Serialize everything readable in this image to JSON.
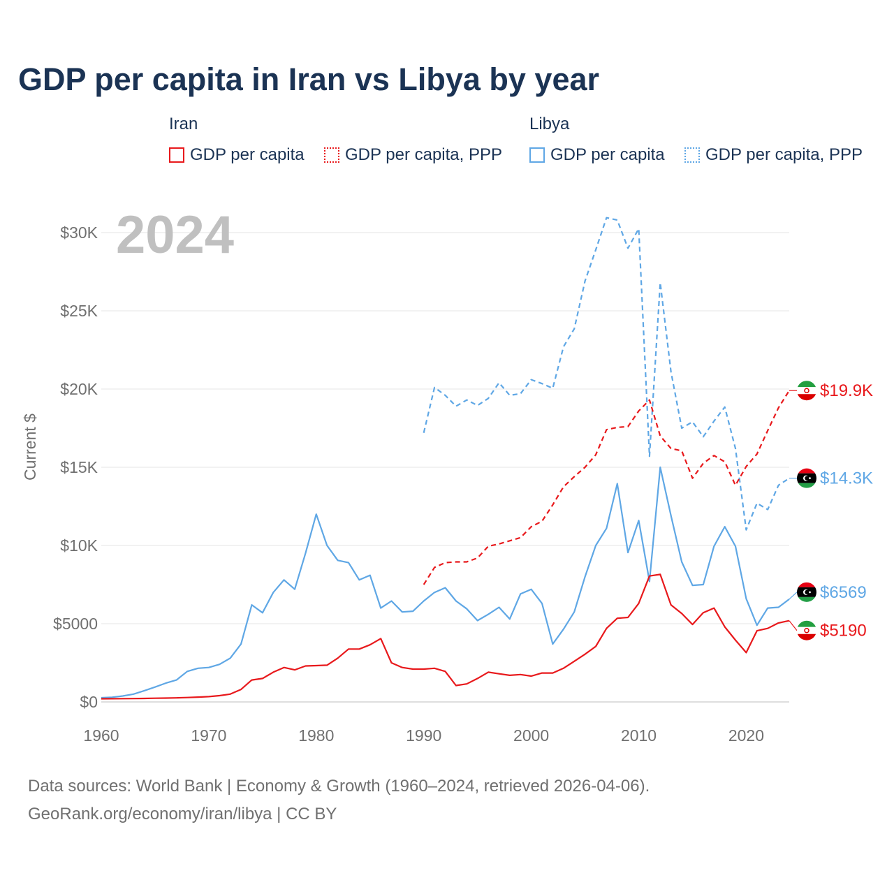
{
  "title": "GDP per capita in Iran vs Libya by year",
  "year_watermark": "2024",
  "legend": {
    "groups": [
      {
        "country": "Iran",
        "items": [
          {
            "label": "GDP per capita",
            "style": "solid",
            "color": "#e8191c"
          },
          {
            "label": "GDP per capita, PPP",
            "style": "dotted",
            "color": "#e8191c"
          }
        ]
      },
      {
        "country": "Libya",
        "items": [
          {
            "label": "GDP per capita",
            "style": "solid",
            "color": "#5fa7e5"
          },
          {
            "label": "GDP per capita, PPP",
            "style": "dotted",
            "color": "#5fa7e5"
          }
        ]
      }
    ]
  },
  "footer": {
    "line1": "Data sources: World Bank | Economy & Growth (1960–2024, retrieved 2026-04-06).",
    "line2": "GeoRank.org/economy/iran/libya | CC BY"
  },
  "colors": {
    "iran": "#e8191c",
    "libya": "#5fa7e5",
    "text": "#1b3354",
    "axis": "#707070",
    "grid": "#e6e6e6"
  },
  "chart_data": {
    "type": "line",
    "title": "GDP per capita in Iran vs Libya by year",
    "xlabel": "",
    "ylabel": "Current $",
    "xlim": [
      1960,
      2024
    ],
    "ylim": [
      0,
      31000
    ],
    "x_ticks": [
      1960,
      1970,
      1980,
      1990,
      2000,
      2010,
      2020
    ],
    "y_ticks": [
      {
        "value": 0,
        "label": "$0"
      },
      {
        "value": 5000,
        "label": "$5000"
      },
      {
        "value": 10000,
        "label": "$10K"
      },
      {
        "value": 15000,
        "label": "$15K"
      },
      {
        "value": 20000,
        "label": "$20K"
      },
      {
        "value": 25000,
        "label": "$25K"
      },
      {
        "value": 30000,
        "label": "$30K"
      }
    ],
    "grid": true,
    "series": [
      {
        "name": "Libya GDP per capita",
        "country": "libya",
        "dashed": false,
        "color": "#5fa7e5",
        "end_label": "$6569",
        "end_value": 6569,
        "start_year": 1960,
        "values": [
          270,
          300,
          380,
          500,
          720,
          950,
          1200,
          1400,
          1950,
          2150,
          2200,
          2400,
          2800,
          3700,
          6200,
          5700,
          7000,
          7800,
          7200,
          9500,
          12000,
          10000,
          9050,
          8900,
          7800,
          8100,
          6000,
          6450,
          5750,
          5800,
          6450,
          7000,
          7300,
          6450,
          5950,
          5200,
          5600,
          6050,
          5300,
          6900,
          7200,
          6300,
          3700,
          4650,
          5750,
          8000,
          10000,
          11100,
          13950,
          9550,
          11600,
          7700,
          15000,
          11900,
          8950,
          7450,
          7500,
          9950,
          11200,
          9950,
          6600,
          4900,
          6000,
          6050,
          6569
        ]
      },
      {
        "name": "Iran GDP per capita",
        "country": "iran",
        "dashed": false,
        "color": "#e8191c",
        "end_label": "$5190",
        "end_value": 5190,
        "start_year": 1960,
        "values": [
          200,
          205,
          210,
          215,
          225,
          235,
          245,
          260,
          280,
          310,
          340,
          400,
          500,
          800,
          1400,
          1500,
          1900,
          2200,
          2050,
          2300,
          2320,
          2350,
          2800,
          3380,
          3380,
          3650,
          4050,
          2500,
          2200,
          2100,
          2100,
          2150,
          1950,
          1050,
          1150,
          1500,
          1900,
          1800,
          1700,
          1750,
          1650,
          1850,
          1850,
          2150,
          2600,
          3050,
          3550,
          4700,
          5350,
          5400,
          6300,
          8050,
          8150,
          6200,
          5650,
          4950,
          5700,
          6000,
          4800,
          3950,
          3150,
          4550,
          4700,
          5050,
          5190
        ]
      },
      {
        "name": "Libya GDP per capita, PPP",
        "country": "libya",
        "dashed": true,
        "color": "#5fa7e5",
        "end_label": "$14.3K",
        "end_value": 14300,
        "start_year": 1990,
        "values": [
          17200,
          20100,
          19600,
          18900,
          19300,
          18950,
          19400,
          20400,
          19600,
          19700,
          20600,
          20350,
          20050,
          22700,
          23850,
          26900,
          28900,
          30950,
          30800,
          29000,
          30250,
          15700,
          26800,
          21100,
          17500,
          17900,
          16950,
          17950,
          18850,
          16200,
          11000,
          12700,
          12300,
          13850,
          14300
        ]
      },
      {
        "name": "Iran GDP per capita, PPP",
        "country": "iran",
        "dashed": true,
        "color": "#e8191c",
        "end_label": "$19.9K",
        "end_value": 19900,
        "start_year": 1990,
        "values": [
          7500,
          8600,
          8900,
          8950,
          8950,
          9200,
          9950,
          10100,
          10300,
          10500,
          11200,
          11550,
          12600,
          13750,
          14400,
          15000,
          15800,
          17400,
          17550,
          17600,
          18600,
          19300,
          17000,
          16200,
          16050,
          14300,
          15250,
          15750,
          15350,
          13850,
          15050,
          15850,
          17350,
          18800,
          19900
        ]
      }
    ]
  }
}
